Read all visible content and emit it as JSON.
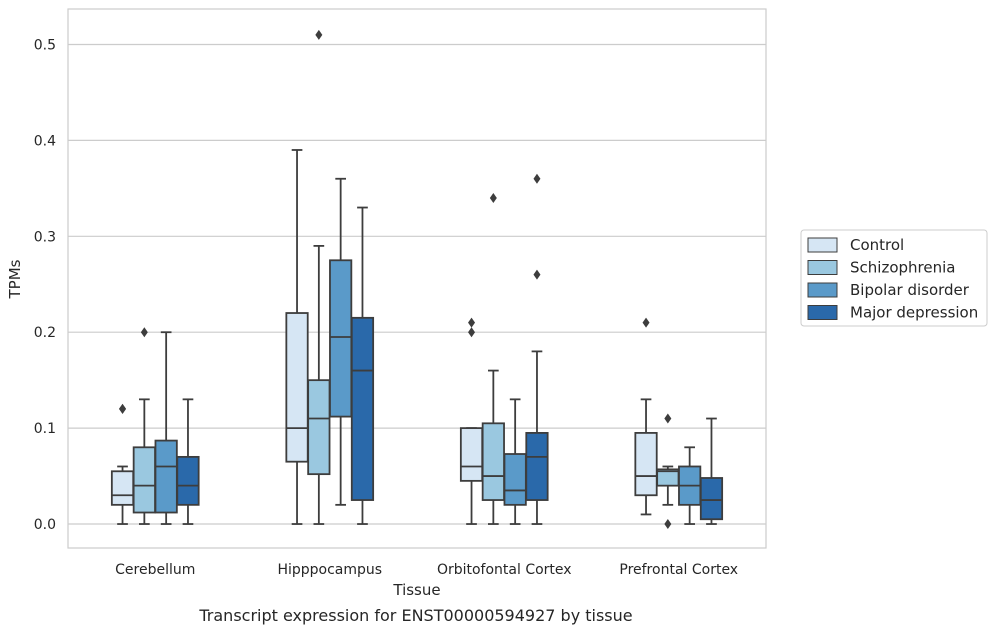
{
  "chart_data": {
    "type": "boxplot",
    "title": "",
    "caption": "Transcript expression for ENST00000594927 by tissue",
    "xlabel": "Tissue",
    "ylabel": "TPMs",
    "ylim": [
      -0.025,
      0.537
    ],
    "yticks": [
      0.0,
      0.1,
      0.2,
      0.3,
      0.4,
      0.5
    ],
    "ytick_labels": [
      "0.0",
      "0.1",
      "0.2",
      "0.3",
      "0.4",
      "0.5"
    ],
    "grid": "horizontal",
    "legend_position": "right",
    "categories": [
      "Cerebellum",
      "Hipppocampus",
      "Orbitofontal Cortex",
      "Prefrontal Cortex"
    ],
    "series": [
      {
        "name": "Control",
        "color": "#d6e6f4",
        "boxes": [
          {
            "whislo": 0.0,
            "q1": 0.02,
            "med": 0.03,
            "q3": 0.055,
            "whishi": 0.06,
            "fliers": [
              0.12,
              0.12
            ]
          },
          {
            "whislo": 0.0,
            "q1": 0.065,
            "med": 0.1,
            "q3": 0.22,
            "whishi": 0.39,
            "fliers": []
          },
          {
            "whislo": 0.0,
            "q1": 0.045,
            "med": 0.06,
            "q3": 0.1,
            "whishi": 0.1,
            "fliers": [
              0.2,
              0.21
            ]
          },
          {
            "whislo": 0.01,
            "q1": 0.03,
            "med": 0.05,
            "q3": 0.095,
            "whishi": 0.13,
            "fliers": [
              0.21
            ]
          }
        ]
      },
      {
        "name": "Schizophrenia",
        "color": "#9ac8e0",
        "boxes": [
          {
            "whislo": 0.0,
            "q1": 0.012,
            "med": 0.04,
            "q3": 0.08,
            "whishi": 0.13,
            "fliers": [
              0.2
            ]
          },
          {
            "whislo": 0.0,
            "q1": 0.052,
            "med": 0.11,
            "q3": 0.15,
            "whishi": 0.29,
            "fliers": [
              0.51
            ]
          },
          {
            "whislo": 0.0,
            "q1": 0.025,
            "med": 0.05,
            "q3": 0.105,
            "whishi": 0.16,
            "fliers": [
              0.34
            ]
          },
          {
            "whislo": 0.02,
            "q1": 0.04,
            "med": 0.055,
            "q3": 0.057,
            "whishi": 0.06,
            "fliers": [
              0.11,
              0.0
            ]
          }
        ]
      },
      {
        "name": "Bipolar disorder",
        "color": "#5a9ac9",
        "boxes": [
          {
            "whislo": 0.0,
            "q1": 0.012,
            "med": 0.06,
            "q3": 0.087,
            "whishi": 0.2,
            "fliers": []
          },
          {
            "whislo": 0.02,
            "q1": 0.112,
            "med": 0.195,
            "q3": 0.275,
            "whishi": 0.36,
            "fliers": []
          },
          {
            "whislo": 0.0,
            "q1": 0.02,
            "med": 0.035,
            "q3": 0.073,
            "whishi": 0.13,
            "fliers": []
          },
          {
            "whislo": 0.0,
            "q1": 0.02,
            "med": 0.04,
            "q3": 0.06,
            "whishi": 0.08,
            "fliers": []
          }
        ]
      },
      {
        "name": "Major depression",
        "color": "#2a69aa",
        "boxes": [
          {
            "whislo": 0.0,
            "q1": 0.02,
            "med": 0.04,
            "q3": 0.07,
            "whishi": 0.13,
            "fliers": []
          },
          {
            "whislo": 0.0,
            "q1": 0.025,
            "med": 0.16,
            "q3": 0.215,
            "whishi": 0.33,
            "fliers": []
          },
          {
            "whislo": 0.0,
            "q1": 0.025,
            "med": 0.07,
            "q3": 0.095,
            "whishi": 0.18,
            "fliers": [
              0.26,
              0.36
            ]
          },
          {
            "whislo": 0.0,
            "q1": 0.005,
            "med": 0.025,
            "q3": 0.048,
            "whishi": 0.11,
            "fliers": []
          }
        ]
      }
    ]
  }
}
